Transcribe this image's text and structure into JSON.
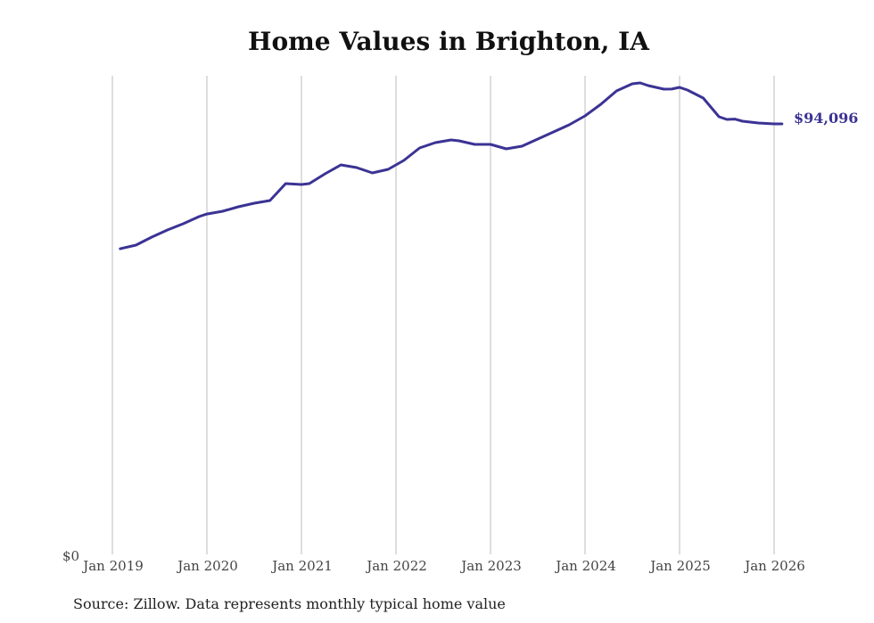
{
  "chart_data": {
    "type": "line",
    "title": "Home Values in Brighton, IA",
    "xlabel": "",
    "ylabel": "",
    "ylim": [
      0,
      105000
    ],
    "y_tick_labels": [
      "$0"
    ],
    "x_tick_labels": [
      "Jan 2019",
      "Jan 2020",
      "Jan 2021",
      "Jan 2022",
      "Jan 2023",
      "Jan 2024",
      "Jan 2025",
      "Jan 2026"
    ],
    "grid": "vertical",
    "end_label": "$94,096",
    "series": [
      {
        "name": "Typical home value",
        "color": "#3b3394",
        "points": [
          [
            "2019-02",
            66800
          ],
          [
            "2019-04",
            67600
          ],
          [
            "2019-06",
            69350
          ],
          [
            "2019-08",
            70900
          ],
          [
            "2019-10",
            72270
          ],
          [
            "2019-12",
            73830
          ],
          [
            "2020-01",
            74400
          ],
          [
            "2020-03",
            75000
          ],
          [
            "2020-05",
            75970
          ],
          [
            "2020-07",
            76750
          ],
          [
            "2020-09",
            77340
          ],
          [
            "2020-11",
            81040
          ],
          [
            "2021-01",
            80840
          ],
          [
            "2021-02",
            81040
          ],
          [
            "2021-04",
            83180
          ],
          [
            "2021-06",
            85130
          ],
          [
            "2021-08",
            84540
          ],
          [
            "2021-10",
            83370
          ],
          [
            "2021-12",
            84150
          ],
          [
            "2022-02",
            86100
          ],
          [
            "2022-04",
            88830
          ],
          [
            "2022-06",
            90000
          ],
          [
            "2022-08",
            90580
          ],
          [
            "2022-09",
            90390
          ],
          [
            "2022-11",
            89610
          ],
          [
            "2023-01",
            89610
          ],
          [
            "2023-03",
            88630
          ],
          [
            "2023-05",
            89220
          ],
          [
            "2023-07",
            90780
          ],
          [
            "2023-09",
            92340
          ],
          [
            "2023-11",
            93890
          ],
          [
            "2024-01",
            95840
          ],
          [
            "2024-03",
            98370
          ],
          [
            "2024-05",
            101300
          ],
          [
            "2024-07",
            102850
          ],
          [
            "2024-08",
            103050
          ],
          [
            "2024-09",
            102470
          ],
          [
            "2024-11",
            101690
          ],
          [
            "2024-12",
            101700
          ],
          [
            "2025-01",
            102080
          ],
          [
            "2025-02",
            101490
          ],
          [
            "2025-04",
            99740
          ],
          [
            "2025-06",
            95650
          ],
          [
            "2025-07",
            95060
          ],
          [
            "2025-08",
            95150
          ],
          [
            "2025-09",
            94670
          ],
          [
            "2025-11",
            94280
          ],
          [
            "2026-01",
            94100
          ],
          [
            "2026-02",
            94096
          ]
        ]
      }
    ]
  },
  "source": "Source: Zillow. Data represents monthly typical home value"
}
